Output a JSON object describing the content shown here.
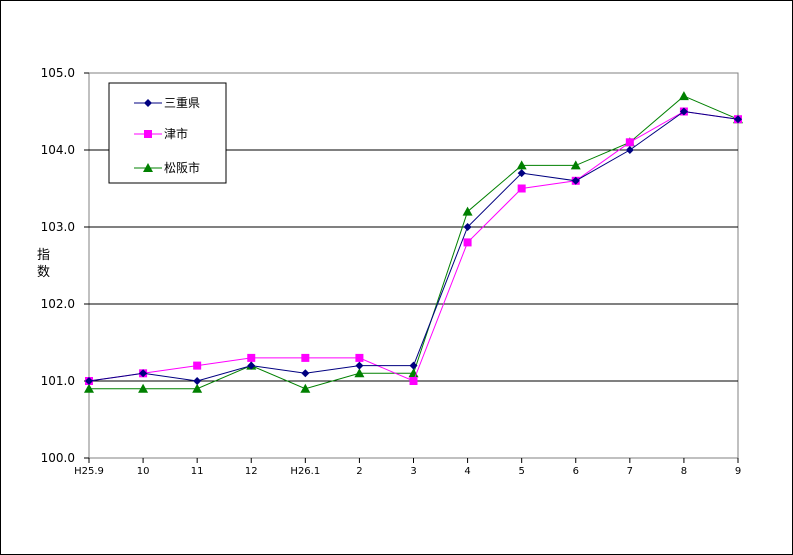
{
  "chart_data": {
    "type": "line",
    "title": "",
    "xlabel": "",
    "ylabel": "指数",
    "categories": [
      "H25.9",
      "10",
      "11",
      "12",
      "H26.1",
      "2",
      "3",
      "4",
      "5",
      "6",
      "7",
      "8",
      "9"
    ],
    "ylim": [
      100.0,
      105.0
    ],
    "yticks": [
      "100.0",
      "101.0",
      "102.0",
      "103.0",
      "104.0",
      "105.0"
    ],
    "grid": true,
    "legend_position": "top-left",
    "series": [
      {
        "name": "三重県",
        "color": "#000080",
        "marker": "diamond",
        "values": [
          101.0,
          101.1,
          101.0,
          101.2,
          101.1,
          101.2,
          101.2,
          103.0,
          103.7,
          103.6,
          104.0,
          104.5,
          104.4
        ]
      },
      {
        "name": "津市",
        "color": "#FF00FF",
        "marker": "square",
        "values": [
          101.0,
          101.1,
          101.2,
          101.3,
          101.3,
          101.3,
          101.0,
          102.8,
          103.5,
          103.6,
          104.1,
          104.5,
          104.4
        ]
      },
      {
        "name": "松阪市",
        "color": "#008000",
        "marker": "triangle",
        "values": [
          100.9,
          100.9,
          100.9,
          101.2,
          100.9,
          101.1,
          101.1,
          103.2,
          103.8,
          103.8,
          104.1,
          104.7,
          104.4
        ]
      }
    ]
  }
}
